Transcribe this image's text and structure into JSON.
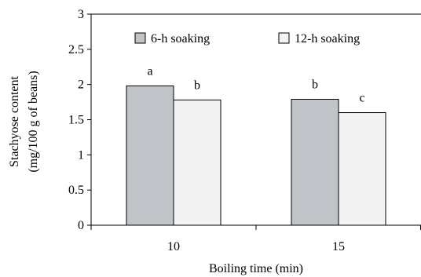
{
  "chart_data": {
    "type": "bar",
    "categories": [
      "10",
      "15"
    ],
    "series": [
      {
        "name": "6-h soaking",
        "values": [
          1.98,
          1.79
        ],
        "labels": [
          "a",
          "b"
        ],
        "color": "#c0c4c8"
      },
      {
        "name": "12-h soaking",
        "values": [
          1.78,
          1.6
        ],
        "labels": [
          "b",
          "c"
        ],
        "color": "#f3f3f3"
      }
    ],
    "xlabel": "Boiling time (min)",
    "ylabel_lines": [
      "Stachyose content",
      "(mg/100 g of beans)"
    ],
    "ylim": [
      0,
      3
    ],
    "yticks": [
      "0",
      "0.5",
      "1",
      "1.5",
      "2",
      "2.5",
      "3"
    ],
    "grid": false,
    "legend_position": "top"
  }
}
